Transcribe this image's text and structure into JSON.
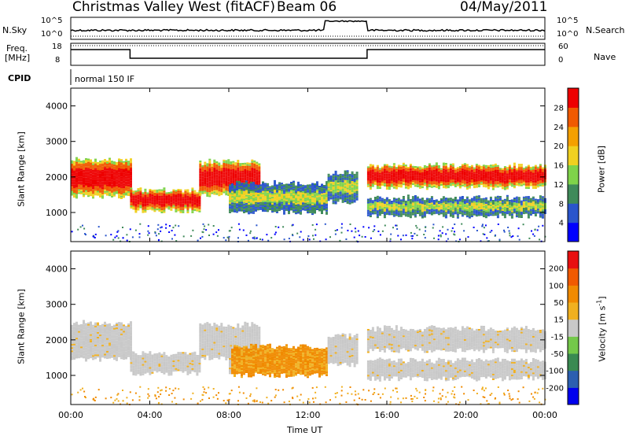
{
  "header": {
    "station": "Christmas Valley West (fitACF)",
    "beam": "Beam 06",
    "date": "04/May/2011"
  },
  "top_panels": {
    "nsky_label": "N.Sky",
    "nsky_ticks": [
      "10^5",
      "10^0"
    ],
    "nsearch_label": "N.Search",
    "nsearch_ticks": [
      "10^5",
      "10^0"
    ],
    "freq_label": "Freq.",
    "freq_unit": "[MHz]",
    "freq_ticks": [
      "18",
      "8"
    ],
    "nave_label": "Nave",
    "nave_ticks": [
      "60",
      "0"
    ],
    "cpid_label": "CPID",
    "cpid_value": "normal 150 IF"
  },
  "chart_data": [
    {
      "type": "heatmap",
      "name": "power",
      "ylabel": "Slant Range [km]",
      "xlabel": "",
      "xlim": [
        0,
        24
      ],
      "ylim": [
        180,
        4500
      ],
      "yticks": [
        "4000",
        "3000",
        "2000",
        "1000"
      ],
      "colorbar": {
        "label": "Power [dB]",
        "ticks": [
          "28",
          "24",
          "20",
          "16",
          "12",
          "8",
          "4"
        ],
        "colors": [
          "#0000ff",
          "#2a55cc",
          "#3f8a5a",
          "#7fd34a",
          "#f0d020",
          "#f4a000",
          "#f05a00",
          "#ee0000"
        ]
      },
      "bands": [
        {
          "t": [
            0,
            3
          ],
          "range": [
            1450,
            2450
          ],
          "level": "strong"
        },
        {
          "t": [
            3,
            6.5
          ],
          "range": [
            1050,
            1600
          ],
          "level": "strong"
        },
        {
          "t": [
            6.5,
            9.5
          ],
          "range": [
            1500,
            2400
          ],
          "level": "strong"
        },
        {
          "t": [
            8,
            13
          ],
          "range": [
            1000,
            1800
          ],
          "level": "medium"
        },
        {
          "t": [
            13,
            14.5
          ],
          "range": [
            1300,
            2100
          ],
          "level": "medium"
        },
        {
          "t": [
            15,
            24
          ],
          "range": [
            1700,
            2300
          ],
          "level": "strong"
        },
        {
          "t": [
            15,
            24
          ],
          "range": [
            900,
            1400
          ],
          "level": "medium"
        }
      ]
    },
    {
      "type": "heatmap",
      "name": "velocity",
      "ylabel": "Slant Range [km]",
      "xlabel": "Time UT",
      "xlim": [
        0,
        24
      ],
      "ylim": [
        180,
        4500
      ],
      "yticks": [
        "4000",
        "3000",
        "2000",
        "1000"
      ],
      "xticks": [
        "00:00",
        "04:00",
        "08:00",
        "12:00",
        "16:00",
        "20:00",
        "00:00"
      ],
      "colorbar": {
        "label": "Velocity [m s-1]",
        "ticks": [
          "200",
          "100",
          "50",
          "15",
          "-15",
          "-50",
          "-100",
          "-200"
        ],
        "colors": [
          "#0000ee",
          "#2c5fb0",
          "#3a8a52",
          "#74c84a",
          "#c8c8c8",
          "#f0b020",
          "#f08a00",
          "#f05a00",
          "#e81010"
        ]
      }
    }
  ]
}
